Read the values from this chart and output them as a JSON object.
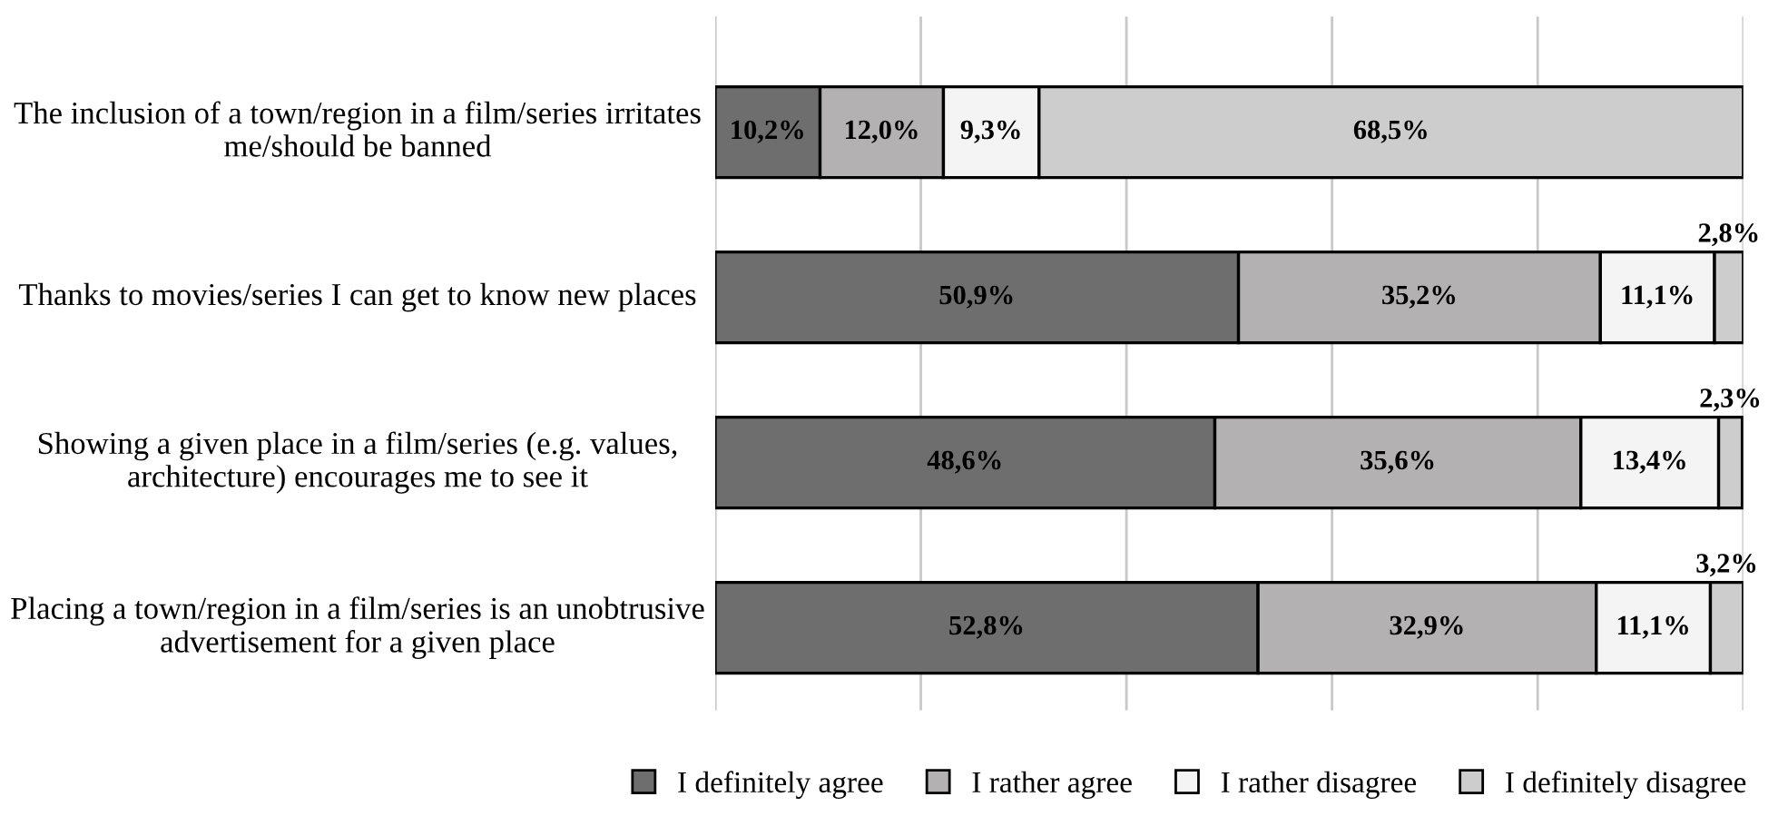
{
  "chart_data": {
    "type": "bar",
    "orientation": "horizontal",
    "stacked": true,
    "categories": [
      "The inclusion of a town/region in a film/series irritates me/should be banned",
      "Thanks to movies/series I can get to know new places",
      "Showing a given place in a film/series (e.g. values, architecture) encourages me to see it",
      "Placing a town/region in a film/series is an unobtrusive advertisement for a given place"
    ],
    "series": [
      {
        "name": "I definitely agree",
        "color": "#6e6e6e",
        "values": [
          10.2,
          50.9,
          48.6,
          52.8
        ],
        "value_labels": [
          "10,2%",
          "50,9%",
          "48,6%",
          "52,8%"
        ]
      },
      {
        "name": "I rather agree",
        "color": "#b3b1b1",
        "values": [
          12.0,
          35.2,
          35.6,
          32.9
        ],
        "value_labels": [
          "12,0%",
          "35,2%",
          "35,6%",
          "32,9%"
        ]
      },
      {
        "name": "I rather disagree",
        "color": "#f4f4f4",
        "values": [
          9.3,
          11.1,
          13.4,
          11.1
        ],
        "value_labels": [
          "9,3%",
          "11,1%",
          "13,4%",
          "11,1%"
        ]
      },
      {
        "name": "I definitely disagree",
        "color": "#cdcdcd",
        "values": [
          68.5,
          2.8,
          2.3,
          3.2
        ],
        "value_labels": [
          "68,5%",
          "2,8%",
          "2,3%",
          "3,2%"
        ]
      }
    ],
    "xlim": [
      0,
      100
    ],
    "xticks": [
      {
        "value": 0,
        "label": null
      },
      {
        "value": 20,
        "label": null
      },
      {
        "value": 40,
        "label": null
      },
      {
        "value": 60,
        "label": null
      },
      {
        "value": 80,
        "label": null
      },
      {
        "value": 100,
        "label": null
      }
    ],
    "tick_labels": "y",
    "grid": "x",
    "legend": "bottom",
    "marker": "square"
  }
}
